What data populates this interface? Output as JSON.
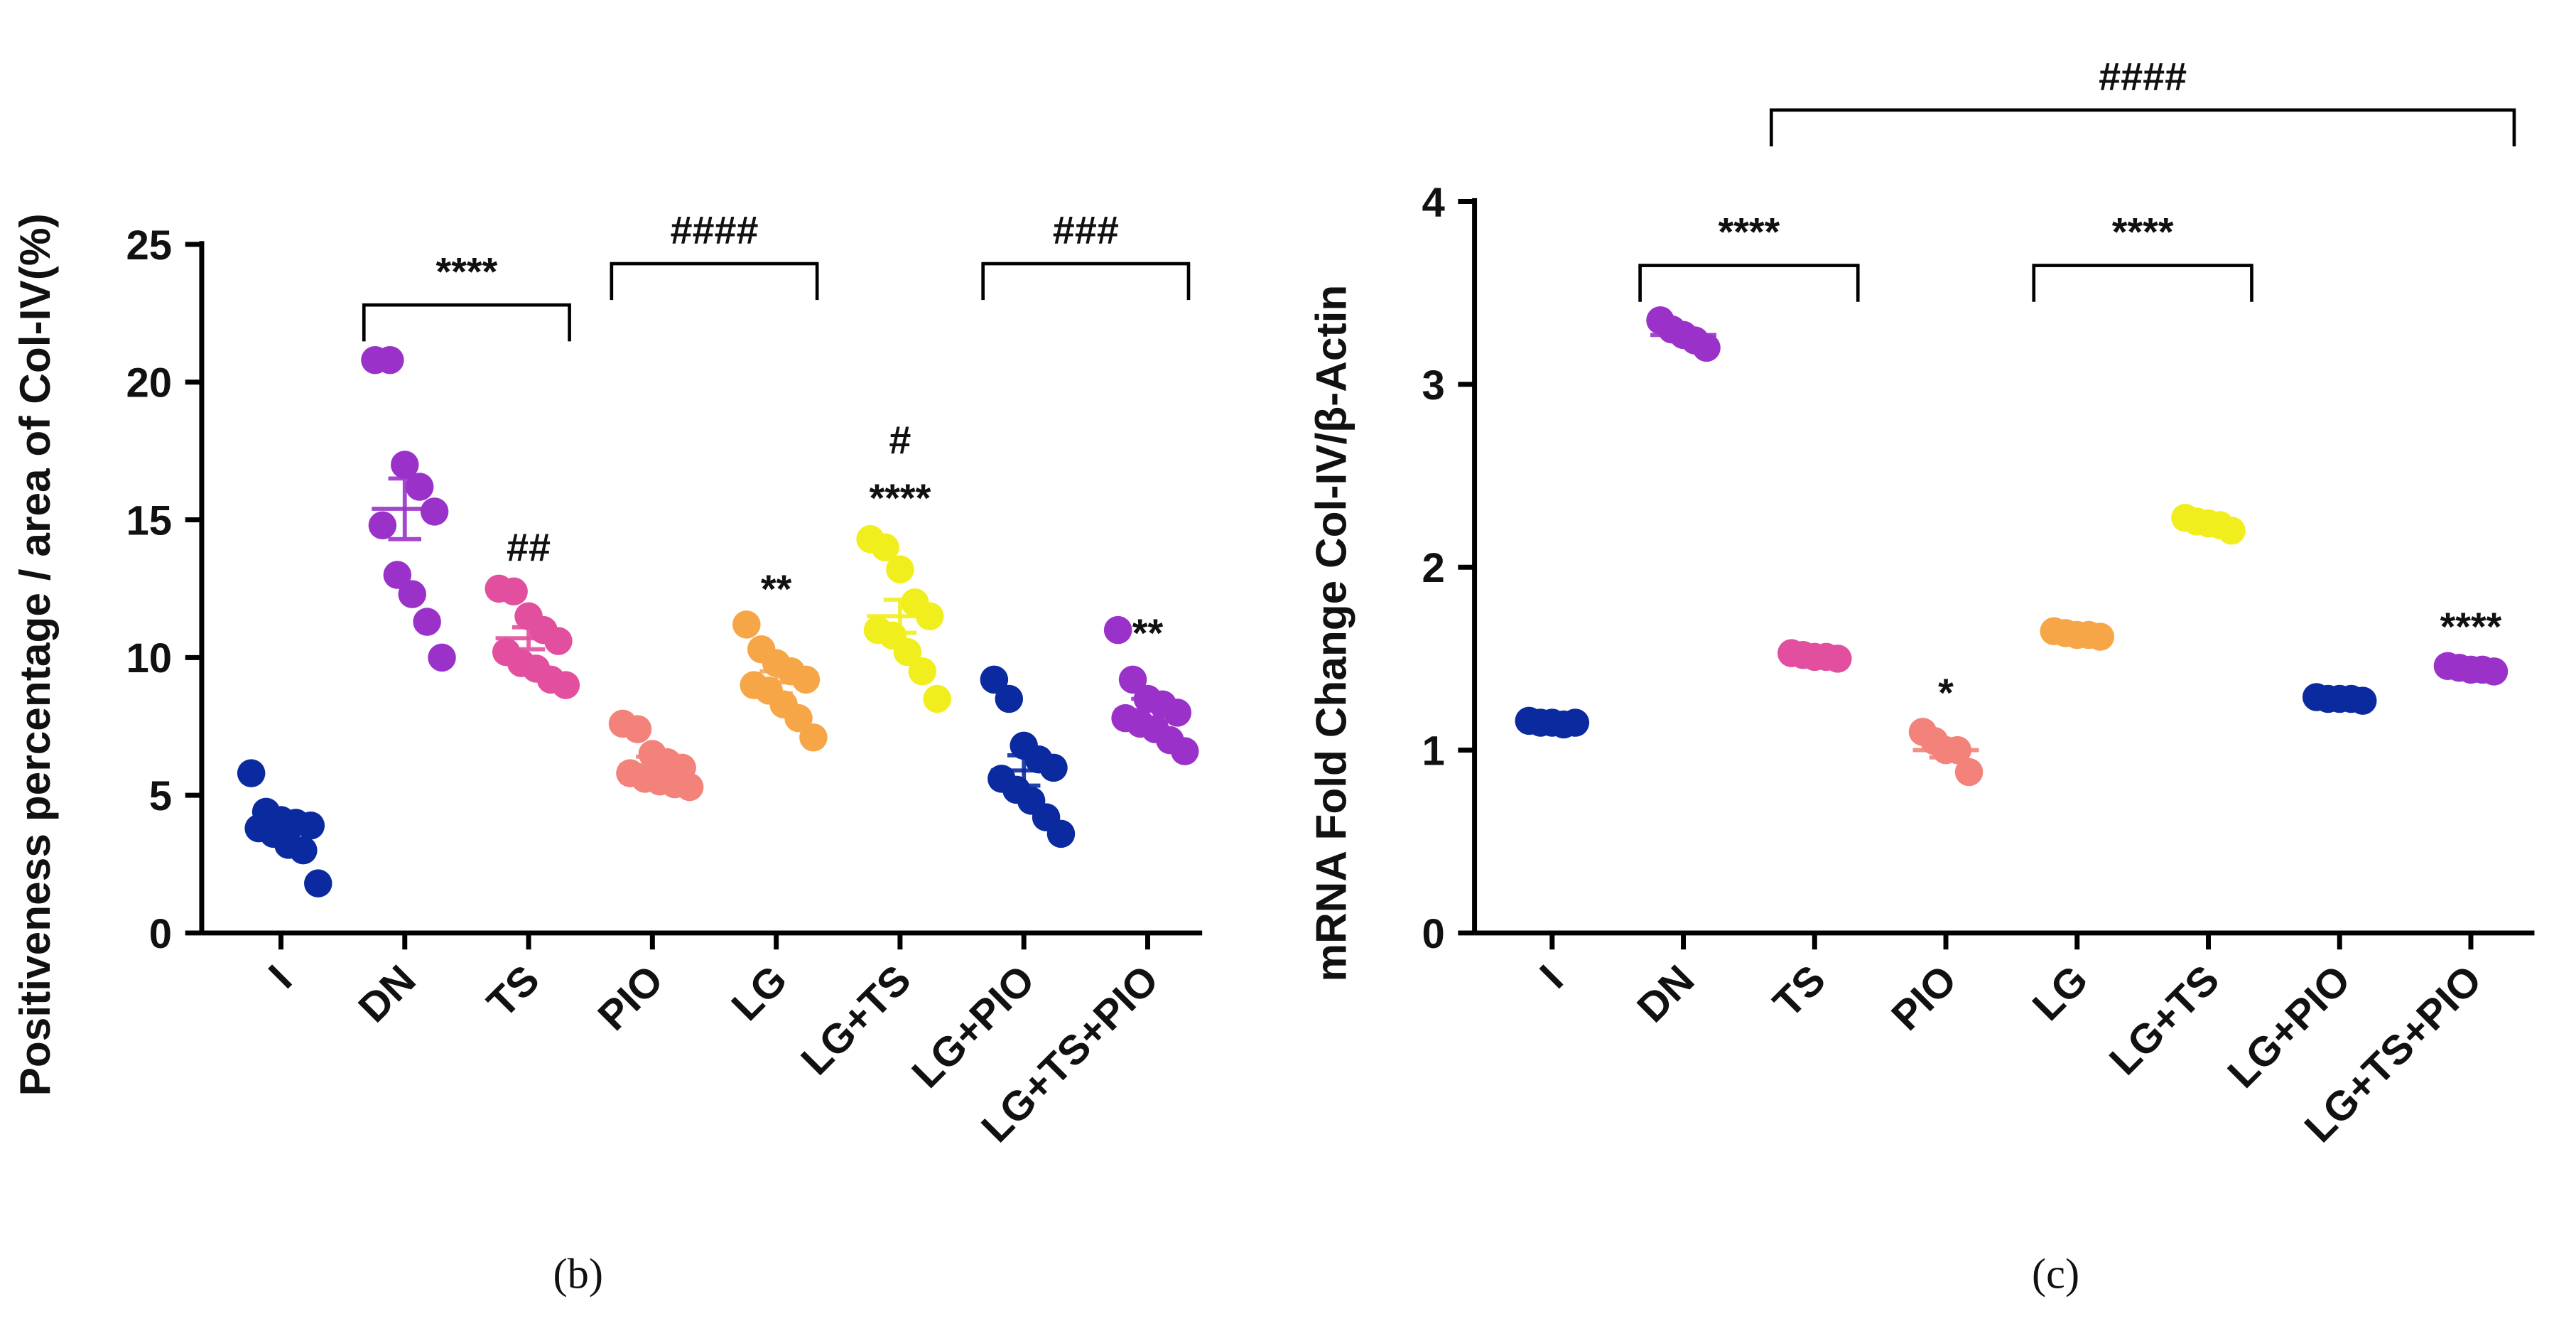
{
  "chart_data": [
    {
      "type": "strip",
      "panel_label": "(b)",
      "y_label": "Positiveness percentage / area of Col-IV(%)",
      "categories": [
        "I",
        "DN",
        "TS",
        "PIO",
        "LG",
        "LG+TS",
        "LG+PIO",
        "LG+TS+PIO"
      ],
      "colors": [
        "#0b2aa0",
        "#9a32c9",
        "#e14f9e",
        "#f2827a",
        "#f6a646",
        "#f1ee1e",
        "#0b2aa0",
        "#9a32c9"
      ],
      "values": [
        [
          5.8,
          4.4,
          4.1,
          4.0,
          3.9,
          3.8,
          3.6,
          3.2,
          3.0,
          1.8
        ],
        [
          20.8,
          20.8,
          17.0,
          16.2,
          15.3,
          14.8,
          13.0,
          12.3,
          11.3,
          10.0
        ],
        [
          12.5,
          12.4,
          11.5,
          11.0,
          10.6,
          10.2,
          9.8,
          9.6,
          9.2,
          9.0
        ],
        [
          7.6,
          7.4,
          6.5,
          6.2,
          6.0,
          5.8,
          5.6,
          5.5,
          5.4,
          5.3
        ],
        [
          11.2,
          10.3,
          9.8,
          9.5,
          9.2,
          9.0,
          8.8,
          8.3,
          7.8,
          7.1
        ],
        [
          14.3,
          14.0,
          13.2,
          12.0,
          11.5,
          11.0,
          10.8,
          10.2,
          9.5,
          8.5
        ],
        [
          9.2,
          8.5,
          6.8,
          6.3,
          6.0,
          5.6,
          5.2,
          4.8,
          4.2,
          3.6
        ],
        [
          11.0,
          9.2,
          8.5,
          8.3,
          8.0,
          7.8,
          7.6,
          7.4,
          7.0,
          6.6
        ]
      ],
      "means": [
        3.8,
        15.4,
        10.7,
        6.1,
        9.1,
        11.5,
        5.9,
        8.1
      ],
      "errors": [
        0.35,
        1.1,
        0.4,
        0.3,
        0.4,
        0.6,
        0.55,
        0.4
      ],
      "ylim": [
        0,
        25
      ],
      "yticks": [
        0,
        5,
        10,
        15,
        20,
        25
      ],
      "brackets": [
        {
          "from": 1,
          "to": 2,
          "label": "****",
          "y": 22.8
        },
        {
          "from": 3,
          "to": 4,
          "label": "####",
          "y": 24.3
        },
        {
          "from": 6,
          "to": 7,
          "label": "###",
          "y": 24.3
        }
      ],
      "annotations": [
        {
          "category": 2,
          "label": "##",
          "y": 14.1
        },
        {
          "category": 4,
          "label": "**",
          "y": 12.6
        },
        {
          "category": 5,
          "label": "****",
          "y": 15.9
        },
        {
          "category": 5,
          "label": "#",
          "y": 18.0
        },
        {
          "category": 7,
          "label": "**",
          "y": 11.0
        }
      ]
    },
    {
      "type": "strip",
      "panel_label": "(c)",
      "y_label": "mRNA Fold Change Col-IV/β-Actin",
      "categories": [
        "I",
        "DN",
        "TS",
        "PIO",
        "LG",
        "LG+TS",
        "LG+PIO",
        "LG+TS+PIO"
      ],
      "colors": [
        "#0b2aa0",
        "#9a32c9",
        "#e14f9e",
        "#f2827a",
        "#f6a646",
        "#f1ee1e",
        "#0b2aa0",
        "#9a32c9"
      ],
      "values": [
        [
          1.16,
          1.15,
          1.15,
          1.14,
          1.15
        ],
        [
          3.35,
          3.3,
          3.27,
          3.24,
          3.2
        ],
        [
          1.53,
          1.52,
          1.51,
          1.51,
          1.5
        ],
        [
          1.1,
          1.05,
          1.0,
          1.0,
          0.88
        ],
        [
          1.65,
          1.64,
          1.63,
          1.63,
          1.62
        ],
        [
          2.27,
          2.25,
          2.24,
          2.23,
          2.2
        ],
        [
          1.29,
          1.28,
          1.28,
          1.28,
          1.27
        ],
        [
          1.46,
          1.45,
          1.44,
          1.44,
          1.43
        ]
      ],
      "means": [
        1.15,
        3.27,
        1.52,
        1.0,
        1.63,
        2.24,
        1.28,
        1.44
      ],
      "errors": [
        0.01,
        0.03,
        0.01,
        0.04,
        0.01,
        0.01,
        0.01,
        0.01
      ],
      "ylim": [
        0,
        4
      ],
      "yticks": [
        0,
        1,
        2,
        3,
        4
      ],
      "brackets": [
        {
          "from": 1,
          "to": 2,
          "label": "****",
          "y": 3.65
        },
        {
          "from": 4,
          "to": 5,
          "label": "****",
          "y": 3.65
        },
        {
          "from": 2,
          "to": 7,
          "label": "####",
          "y": 4.5
        }
      ],
      "annotations": [
        {
          "category": 3,
          "label": "*",
          "y": 1.33
        },
        {
          "category": 7,
          "label": "****",
          "y": 1.69
        }
      ]
    }
  ]
}
